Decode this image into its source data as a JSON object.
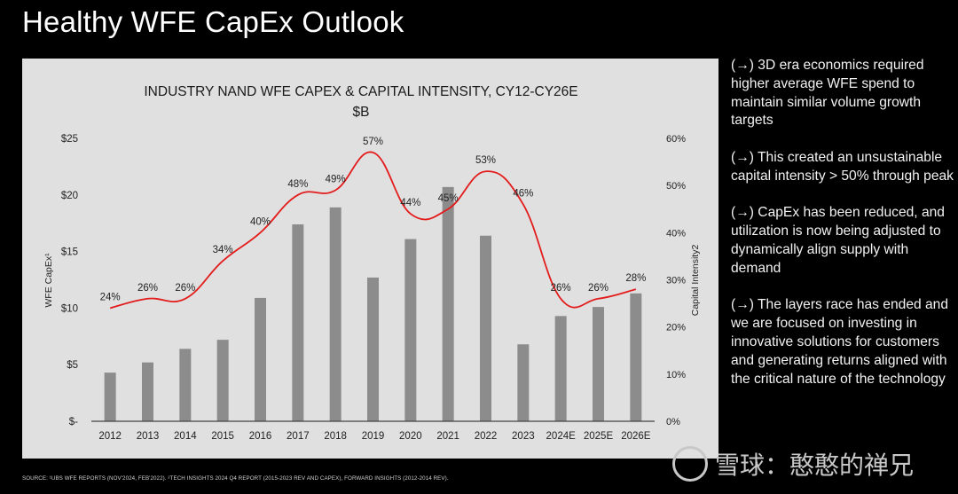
{
  "slide": {
    "title": "Healthy WFE CapEx Outlook",
    "footer": "SOURCE: ¹UBS WFE REPORTS (NOV'2024, FEB'2022).  ²TECH INSIGHTS 2024 Q4 REPORT (2015-2023 REV AND CAPEX), FORWARD INSIGHTS (2012-2014 REV).",
    "watermark": "雪球：憨憨的禅兄",
    "bullets": [
      "(→) 3D era economics required higher average WFE spend to maintain similar volume growth targets",
      "(→) This created an unsustainable capital intensity > 50% through peak",
      "(→) CapEx has been reduced, and utilization is now being adjusted to dynamically align supply with demand",
      "(→) The layers race has ended and we are focused on investing in innovative solutions for customers and generating returns aligned with the critical nature of the technology"
    ]
  },
  "colors": {
    "bar": "#8c8c8c",
    "line": "#e31b1b",
    "panel": "#e0e0e0",
    "text": "#2a2a2a"
  },
  "chart_data": {
    "type": "bar",
    "title": "INDUSTRY NAND WFE CAPEX & CAPITAL INTENSITY, CY12-CY26E",
    "subtitle": "$B",
    "categories": [
      "2012",
      "2013",
      "2014",
      "2015",
      "2016",
      "2017",
      "2018",
      "2019",
      "2020",
      "2021",
      "2022",
      "2023",
      "2024E",
      "2025E",
      "2026E"
    ],
    "series": [
      {
        "name": "WFE CapEx",
        "type": "bar",
        "axis": "left",
        "values": [
          4.3,
          5.2,
          6.4,
          7.2,
          10.9,
          17.4,
          18.9,
          12.7,
          16.1,
          20.7,
          16.4,
          6.8,
          9.3,
          10.1,
          11.3
        ]
      },
      {
        "name": "Capital Intensity",
        "type": "line",
        "axis": "right",
        "values": [
          24,
          26,
          26,
          34,
          40,
          48,
          49,
          57,
          44,
          45,
          53,
          46,
          26,
          26,
          28
        ],
        "labels": [
          "24%",
          "26%",
          "26%",
          "34%",
          "40%",
          "48%",
          "49%",
          "57%",
          "44%",
          "45%",
          "53%",
          "46%",
          "26%",
          "26%",
          "28%"
        ]
      }
    ],
    "ylabel": "WFE CapEx¹",
    "y2label": "Capital Intensity2",
    "ylim": [
      0,
      25
    ],
    "y2lim": [
      0,
      60
    ],
    "yticks": [
      "$-",
      "$5",
      "$10",
      "$15",
      "$20",
      "$25"
    ],
    "y2ticks": [
      "0%",
      "10%",
      "20%",
      "30%",
      "40%",
      "50%",
      "60%"
    ],
    "grid": false,
    "legend": "none"
  }
}
